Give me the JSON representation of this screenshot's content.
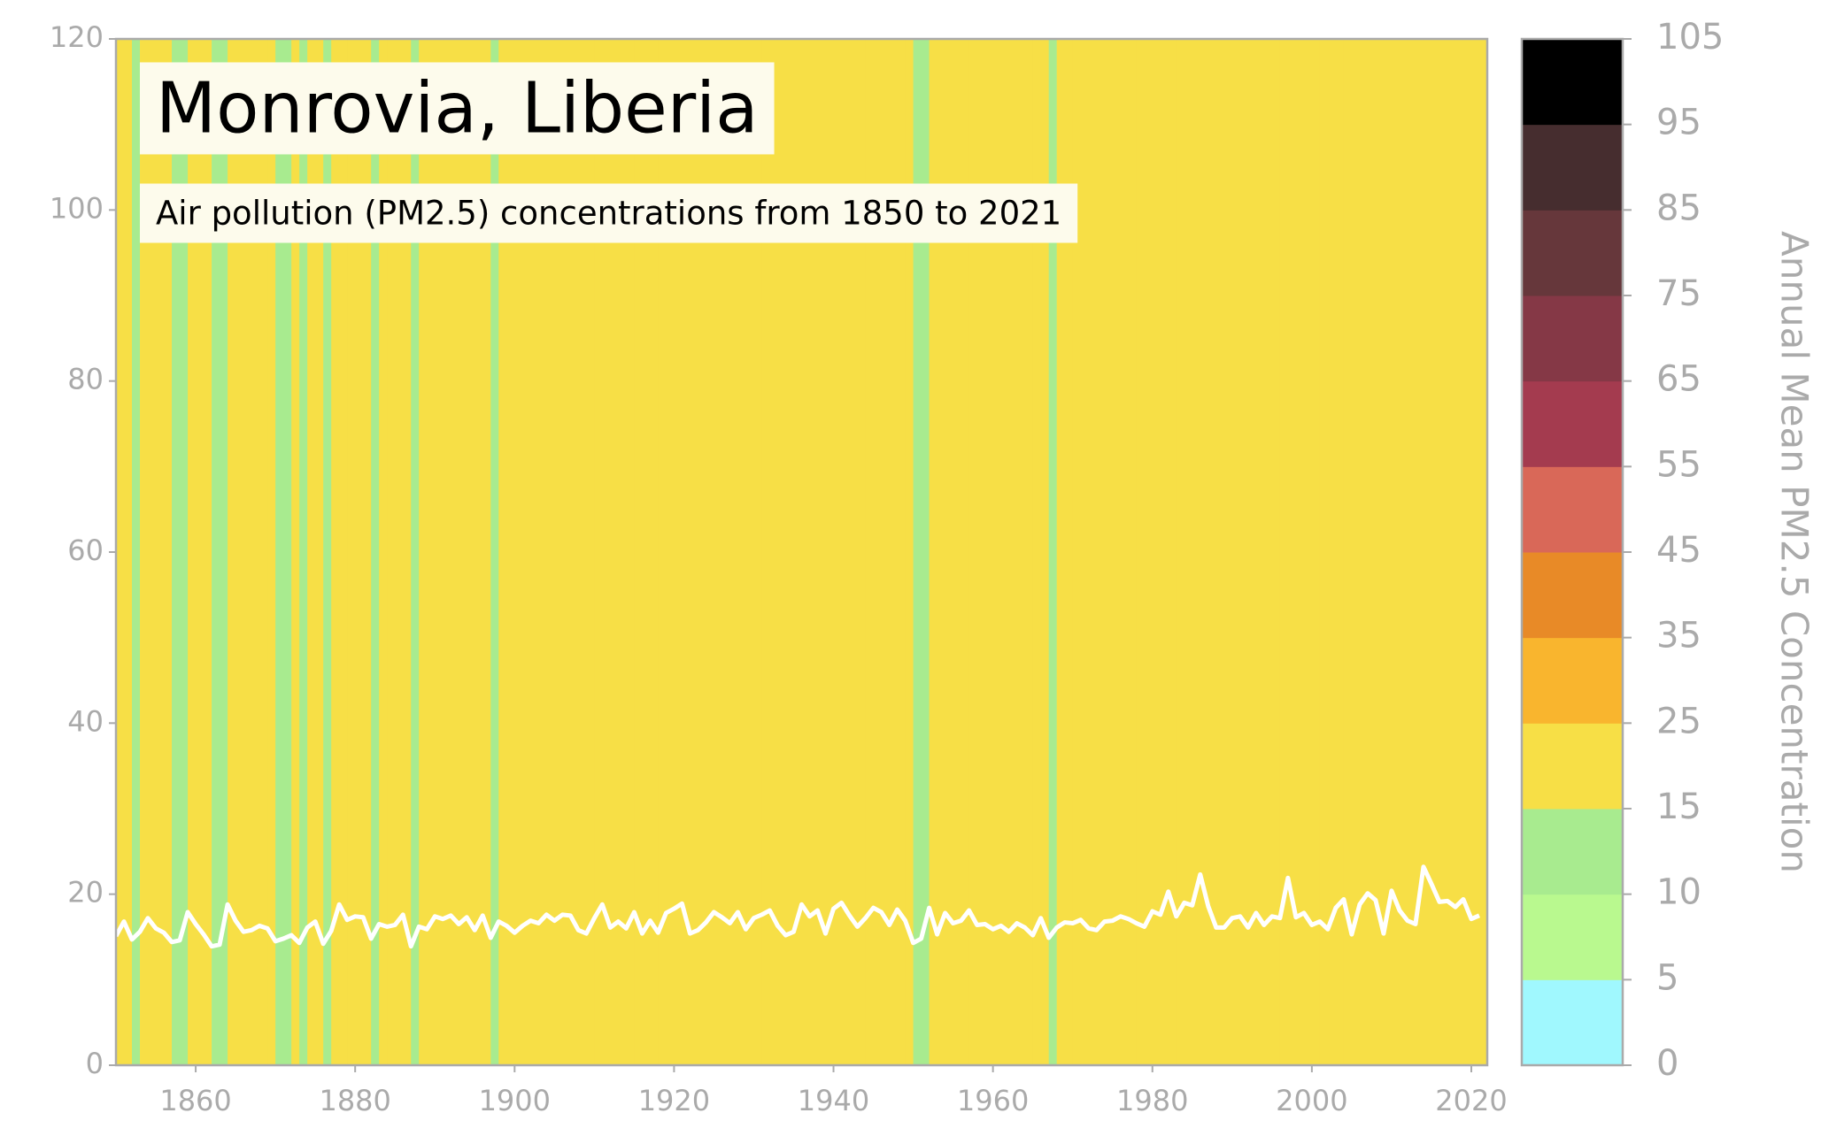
{
  "chart_data": {
    "type": "warming-stripes-line",
    "title": "Monrovia, Liberia",
    "subtitle": "Air pollution (PM2.5) concentrations from 1850 to 2021",
    "x": [
      1850,
      1851,
      1852,
      1853,
      1854,
      1855,
      1856,
      1857,
      1858,
      1859,
      1860,
      1861,
      1862,
      1863,
      1864,
      1865,
      1866,
      1867,
      1868,
      1869,
      1870,
      1871,
      1872,
      1873,
      1874,
      1875,
      1876,
      1877,
      1878,
      1879,
      1880,
      1881,
      1882,
      1883,
      1884,
      1885,
      1886,
      1887,
      1888,
      1889,
      1890,
      1891,
      1892,
      1893,
      1894,
      1895,
      1896,
      1897,
      1898,
      1899,
      1900,
      1901,
      1902,
      1903,
      1904,
      1905,
      1906,
      1907,
      1908,
      1909,
      1910,
      1911,
      1912,
      1913,
      1914,
      1915,
      1916,
      1917,
      1918,
      1919,
      1920,
      1921,
      1922,
      1923,
      1924,
      1925,
      1926,
      1927,
      1928,
      1929,
      1930,
      1931,
      1932,
      1933,
      1934,
      1935,
      1936,
      1937,
      1938,
      1939,
      1940,
      1941,
      1942,
      1943,
      1944,
      1945,
      1946,
      1947,
      1948,
      1949,
      1950,
      1951,
      1952,
      1953,
      1954,
      1955,
      1956,
      1957,
      1958,
      1959,
      1960,
      1961,
      1962,
      1963,
      1964,
      1965,
      1966,
      1967,
      1968,
      1969,
      1970,
      1971,
      1972,
      1973,
      1974,
      1975,
      1976,
      1977,
      1978,
      1979,
      1980,
      1981,
      1982,
      1983,
      1984,
      1985,
      1986,
      1987,
      1988,
      1989,
      1990,
      1991,
      1992,
      1993,
      1994,
      1995,
      1996,
      1997,
      1998,
      1999,
      2000,
      2001,
      2002,
      2003,
      2004,
      2005,
      2006,
      2007,
      2008,
      2009,
      2010,
      2011,
      2012,
      2013,
      2014,
      2015,
      2016,
      2017,
      2018,
      2019,
      2020,
      2021
    ],
    "values": [
      15.1,
      16.8,
      14.7,
      15.6,
      17.2,
      16.0,
      15.5,
      14.4,
      14.6,
      17.9,
      16.5,
      15.3,
      13.9,
      14.1,
      18.8,
      16.9,
      15.6,
      15.8,
      16.3,
      16.0,
      14.5,
      14.8,
      15.2,
      14.3,
      16.1,
      16.8,
      14.2,
      15.7,
      18.8,
      17.0,
      17.4,
      17.3,
      14.8,
      16.5,
      16.2,
      16.4,
      17.6,
      13.9,
      16.2,
      15.9,
      17.4,
      17.1,
      17.5,
      16.5,
      17.3,
      15.8,
      17.5,
      14.9,
      16.8,
      16.3,
      15.5,
      16.3,
      16.9,
      16.6,
      17.6,
      16.9,
      17.6,
      17.5,
      15.8,
      15.4,
      17.2,
      18.8,
      16.1,
      16.8,
      16.0,
      17.9,
      15.4,
      16.9,
      15.5,
      17.8,
      18.3,
      18.9,
      15.4,
      15.8,
      16.7,
      17.9,
      17.3,
      16.6,
      17.9,
      15.9,
      17.2,
      17.6,
      18.1,
      16.3,
      15.2,
      15.6,
      18.8,
      17.4,
      18.1,
      15.4,
      18.3,
      19.0,
      17.5,
      16.2,
      17.2,
      18.4,
      17.9,
      16.4,
      18.2,
      16.9,
      14.3,
      14.8,
      18.4,
      15.3,
      17.8,
      16.6,
      16.9,
      18.1,
      16.4,
      16.5,
      15.9,
      16.3,
      15.6,
      16.6,
      16.1,
      15.2,
      17.2,
      14.9,
      16.1,
      16.7,
      16.6,
      17.0,
      16.0,
      15.8,
      16.8,
      16.9,
      17.4,
      17.1,
      16.6,
      16.2,
      18.0,
      17.6,
      20.3,
      17.4,
      19.0,
      18.7,
      22.3,
      18.6,
      16.1,
      16.1,
      17.2,
      17.4,
      16.1,
      17.8,
      16.4,
      17.4,
      17.2,
      21.9,
      17.3,
      17.8,
      16.4,
      16.8,
      15.9,
      18.4,
      19.4,
      15.3,
      18.8,
      20.1,
      19.3,
      15.4,
      20.4,
      18.1,
      16.9,
      16.5,
      23.2,
      21.2,
      19.1,
      19.2,
      18.5,
      19.4,
      17.1,
      17.5
    ],
    "line_color": "#ffffff",
    "xlim": [
      1850,
      2022
    ],
    "xticks": [
      1860,
      1880,
      1900,
      1920,
      1940,
      1960,
      1980,
      2000,
      2020
    ],
    "ylim": [
      0,
      120
    ],
    "yticks": [
      0,
      20,
      40,
      60,
      80,
      100,
      120
    ],
    "colorbar": {
      "label": "Annual Mean PM2.5 Concentration",
      "ticks": [
        0,
        5,
        10,
        15,
        25,
        35,
        45,
        55,
        65,
        75,
        85,
        95,
        105
      ],
      "colors": [
        "#a0f8fe",
        "#b9f98f",
        "#a8eb8f",
        "#f7df46",
        "#f9b52e",
        "#e88a27",
        "#d96858",
        "#a43b4f",
        "#853846",
        "#66373b",
        "#462d2f",
        "#000000"
      ]
    }
  }
}
